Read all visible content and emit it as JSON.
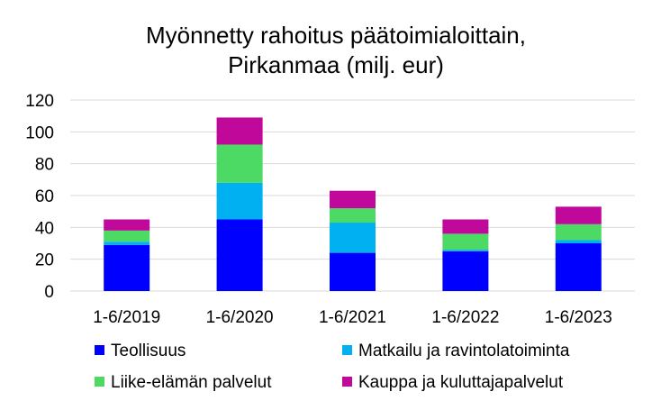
{
  "chart_data": {
    "type": "bar",
    "stacked": true,
    "title_lines": [
      "Myönnetty rahoitus päätoimialoittain,",
      "Pirkanmaa (milj. eur)"
    ],
    "xlabel": "",
    "ylabel": "",
    "ylim": [
      0,
      120
    ],
    "yticks": [
      "0",
      "20",
      "40",
      "60",
      "80",
      "100",
      "120"
    ],
    "grid": true,
    "legend_position": "bottom",
    "categories": [
      "1-6/2019",
      "1-6/2020",
      "1-6/2021",
      "1-6/2022",
      "1-6/2023"
    ],
    "series": [
      {
        "name": "Teollisuus",
        "color": "#0000ff",
        "values": [
          29,
          45,
          24,
          25,
          30
        ]
      },
      {
        "name": "Matkailu ja ravintolatoiminta",
        "color": "#00b0f0",
        "values": [
          2,
          23,
          19,
          1,
          2
        ]
      },
      {
        "name": "Liike-elämän palvelut",
        "color": "#4cd964",
        "values": [
          7,
          24,
          9,
          10,
          10
        ]
      },
      {
        "name": "Kauppa ja kuluttajapalvelut",
        "color": "#c0089b",
        "values": [
          7,
          17,
          11,
          9,
          11
        ]
      }
    ],
    "legend_order": [
      0,
      1,
      2,
      3
    ]
  }
}
